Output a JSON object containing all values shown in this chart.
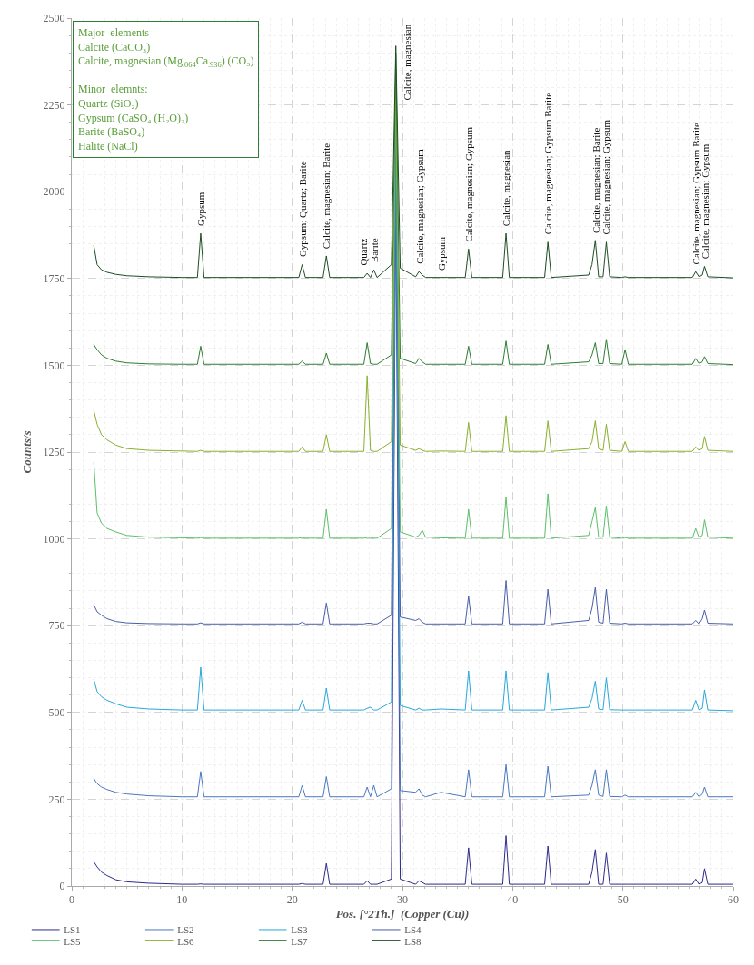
{
  "chart_data": {
    "type": "line",
    "xlabel": "Pos. [°2Th.]  (Copper (Cu))",
    "ylabel": "Counts/s",
    "xlim": [
      0,
      60
    ],
    "xticks": [
      0,
      10,
      20,
      30,
      40,
      50,
      60
    ],
    "ylim": [
      0,
      2500
    ],
    "yticks": [
      0,
      250,
      500,
      750,
      1000,
      1250,
      1500,
      1750,
      2000,
      2250,
      2500
    ],
    "grid": true,
    "legend": "bottom",
    "marker": "none",
    "line_style": "solid",
    "x": [
      2.0,
      2.3,
      2.7,
      3.2,
      4,
      5,
      7,
      10,
      11.4,
      11.7,
      12.0,
      20.6,
      20.9,
      21.2,
      22.8,
      23.1,
      23.4,
      26.5,
      26.8,
      27.1,
      27.4,
      27.7,
      29.0,
      29.4,
      29.8,
      31.2,
      31.5,
      31.8,
      32.1,
      33.5,
      35.7,
      36.0,
      36.3,
      39.1,
      39.4,
      39.7,
      42.9,
      43.2,
      43.5,
      46.9,
      47.2,
      47.5,
      47.8,
      48.2,
      48.5,
      48.8,
      49.9,
      50.2,
      50.5,
      56.3,
      56.6,
      56.9,
      57.2,
      57.4,
      57.7,
      60
    ],
    "series": [
      {
        "name": "LS1",
        "color": "#2e2a8a",
        "values": [
          70,
          55,
          40,
          30,
          18,
          12,
          8,
          5,
          5,
          6,
          5,
          5,
          7,
          5,
          5,
          65,
          5,
          5,
          15,
          5,
          5,
          5,
          20,
          2000,
          20,
          5,
          15,
          10,
          5,
          5,
          5,
          110,
          5,
          5,
          145,
          5,
          5,
          115,
          5,
          5,
          40,
          105,
          5,
          5,
          95,
          5,
          5,
          5,
          5,
          5,
          20,
          5,
          10,
          50,
          5,
          5
        ]
      },
      {
        "name": "LS2",
        "color": "#4a78c0",
        "values": [
          310,
          295,
          285,
          278,
          270,
          265,
          260,
          257,
          257,
          330,
          257,
          257,
          290,
          257,
          257,
          315,
          257,
          257,
          285,
          257,
          290,
          257,
          280,
          2100,
          275,
          270,
          280,
          262,
          257,
          270,
          257,
          335,
          257,
          257,
          350,
          257,
          257,
          345,
          257,
          262,
          290,
          335,
          262,
          258,
          335,
          258,
          257,
          262,
          257,
          257,
          270,
          257,
          265,
          285,
          257,
          257
        ]
      },
      {
        "name": "LS3",
        "color": "#29a8d8",
        "values": [
          595,
          560,
          545,
          535,
          525,
          515,
          510,
          507,
          507,
          630,
          507,
          507,
          535,
          507,
          507,
          570,
          507,
          507,
          512,
          515,
          507,
          507,
          530,
          2200,
          520,
          507,
          512,
          507,
          507,
          510,
          507,
          620,
          507,
          507,
          620,
          507,
          507,
          615,
          507,
          515,
          540,
          590,
          510,
          508,
          600,
          508,
          507,
          507,
          507,
          507,
          535,
          507,
          512,
          565,
          507,
          505
        ]
      },
      {
        "name": "LS4",
        "color": "#4a5fa8",
        "values": [
          810,
          790,
          780,
          770,
          762,
          758,
          756,
          755,
          755,
          758,
          755,
          755,
          760,
          755,
          755,
          815,
          755,
          755,
          757,
          757,
          755,
          755,
          780,
          2250,
          775,
          765,
          770,
          760,
          755,
          755,
          755,
          835,
          755,
          755,
          880,
          755,
          755,
          855,
          755,
          765,
          800,
          860,
          760,
          757,
          855,
          757,
          755,
          757,
          755,
          755,
          765,
          755,
          770,
          795,
          757,
          755
        ]
      },
      {
        "name": "LS5",
        "color": "#5cbf6a",
        "values": [
          1220,
          1075,
          1045,
          1030,
          1020,
          1010,
          1005,
          1003,
          1002,
          1004,
          1002,
          1002,
          1004,
          1002,
          1002,
          1085,
          1002,
          1002,
          1004,
          1004,
          1002,
          1002,
          1030,
          2300,
          1020,
          1005,
          1010,
          1025,
          1005,
          1003,
          1002,
          1085,
          1002,
          1002,
          1120,
          1002,
          1002,
          1130,
          1002,
          1010,
          1050,
          1090,
          1005,
          1005,
          1095,
          1005,
          1002,
          1004,
          1002,
          1002,
          1030,
          1005,
          1010,
          1055,
          1005,
          1002
        ]
      },
      {
        "name": "LS6",
        "color": "#8ab030",
        "values": [
          1370,
          1330,
          1300,
          1285,
          1270,
          1260,
          1255,
          1253,
          1252,
          1255,
          1252,
          1252,
          1265,
          1252,
          1252,
          1300,
          1252,
          1252,
          1470,
          1255,
          1252,
          1252,
          1280,
          2350,
          1270,
          1255,
          1260,
          1255,
          1252,
          1253,
          1252,
          1335,
          1252,
          1252,
          1355,
          1252,
          1252,
          1340,
          1252,
          1260,
          1280,
          1340,
          1260,
          1255,
          1330,
          1255,
          1252,
          1280,
          1252,
          1252,
          1265,
          1255,
          1260,
          1295,
          1255,
          1252
        ]
      },
      {
        "name": "LS7",
        "color": "#2e7d32",
        "values": [
          1560,
          1545,
          1530,
          1520,
          1512,
          1507,
          1504,
          1503,
          1503,
          1555,
          1503,
          1503,
          1512,
          1503,
          1503,
          1535,
          1503,
          1503,
          1565,
          1505,
          1503,
          1503,
          1530,
          2400,
          1520,
          1505,
          1520,
          1510,
          1503,
          1503,
          1503,
          1555,
          1503,
          1503,
          1570,
          1503,
          1503,
          1560,
          1503,
          1510,
          1530,
          1565,
          1505,
          1505,
          1575,
          1505,
          1503,
          1545,
          1503,
          1503,
          1520,
          1505,
          1510,
          1525,
          1505,
          1502
        ]
      },
      {
        "name": "LS8",
        "color": "#1e4d23",
        "values": [
          1845,
          1790,
          1775,
          1768,
          1762,
          1758,
          1755,
          1753,
          1753,
          1880,
          1753,
          1753,
          1790,
          1753,
          1753,
          1815,
          1753,
          1753,
          1765,
          1753,
          1775,
          1753,
          1790,
          2420,
          1780,
          1755,
          1770,
          1760,
          1753,
          1753,
          1753,
          1835,
          1753,
          1753,
          1880,
          1753,
          1753,
          1855,
          1753,
          1760,
          1790,
          1860,
          1755,
          1755,
          1855,
          1755,
          1753,
          1755,
          1753,
          1753,
          1770,
          1755,
          1760,
          1785,
          1755,
          1752
        ]
      }
    ],
    "annotations": [
      "Major  elements\nCalcite (CaCO₃)\nCalcite, magnesian (Mg$_{.064}$Ca$_{.936}$) (CO₃)\n\nMinor  elemnts:\nQuartz (SiO₂)\nGypsum (CaSO₄ (H₂O)₂)\nBarite (BaSO₄)\nHalite (NaCl)",
      {
        "text": "Gypsum",
        "x": 11.7,
        "y": 1880
      },
      {
        "text": "Gypsum; Quartz; Barite",
        "x": 20.9,
        "y": 1790
      },
      {
        "text": "Calcite, magnesian; Barite",
        "x": 23.1,
        "y": 1815
      },
      {
        "text": "Quartz",
        "x": 26.5,
        "y": 1765
      },
      {
        "text": "Barite",
        "x": 27.4,
        "y": 1775
      },
      {
        "text": "Calcite, magnesian",
        "x": 29.4,
        "y": 2420
      },
      {
        "text": "Calcite, magnesian; Gypsum",
        "x": 31.5,
        "y": 1770
      },
      {
        "text": "Gypsum",
        "x": 33.5,
        "y": 1753
      },
      {
        "text": "Calcite, magnesian; Gypsum",
        "x": 36.0,
        "y": 1835
      },
      {
        "text": "Calcite, magnesian",
        "x": 39.4,
        "y": 1880
      },
      {
        "text": "Calcite, magnesian; Gypsum Barite",
        "x": 43.2,
        "y": 1855
      },
      {
        "text": "Calcite, magnesian; Barite",
        "x": 47.5,
        "y": 1860
      },
      {
        "text": "Calcite, magnesian; Gypsum",
        "x": 48.5,
        "y": 1855
      },
      {
        "text": "Calcite, magnesian; Gypsum Barite",
        "x": 56.6,
        "y": 1770
      },
      {
        "text": "Calcite, magnesian; Gypsum",
        "x": 57.4,
        "y": 1785
      }
    ]
  }
}
